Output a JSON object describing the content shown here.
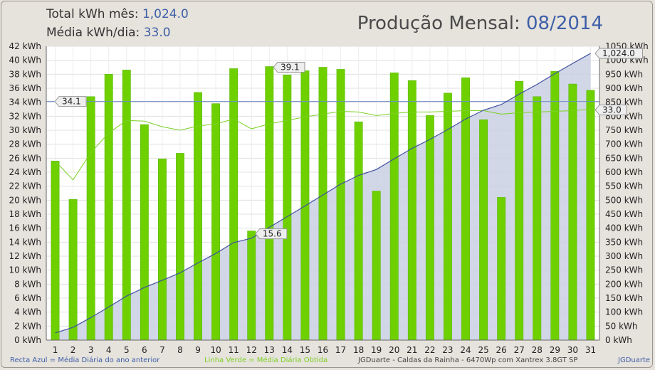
{
  "header": {
    "total_label": "Total kWh mês:",
    "total_value": "1,024.0",
    "avg_label": "Média kWh/dia:",
    "avg_value": "33.0",
    "title_label": "Produção Mensal:",
    "title_value": "08/2014"
  },
  "footer": {
    "blue_note": "Recta Azul = Média Diária do ano anterior",
    "green_note": "Linha Verde = Média Diária Obtida",
    "system_note": "JGDuarte  -  Caldas da Rainha  -  6470Wp com Xantrex 3.8GT SP",
    "credit": "JGDuarte"
  },
  "chart_data": {
    "type": "bar",
    "categories": [
      "1",
      "2",
      "3",
      "4",
      "5",
      "6",
      "7",
      "8",
      "9",
      "10",
      "11",
      "12",
      "13",
      "14",
      "15",
      "16",
      "17",
      "18",
      "19",
      "20",
      "21",
      "22",
      "23",
      "24",
      "25",
      "26",
      "27",
      "28",
      "29",
      "30",
      "31"
    ],
    "series": [
      {
        "values": [
          25.6,
          20.1,
          34.8,
          38.0,
          38.6,
          30.8,
          25.9,
          26.7,
          35.4,
          33.8,
          38.8,
          15.6,
          39.1,
          37.9,
          38.5,
          39.0,
          38.7,
          31.2,
          21.3,
          38.2,
          37.1,
          32.1,
          35.3,
          37.5,
          31.5,
          20.4,
          37.0,
          34.8,
          38.4,
          36.6,
          35.7
        ]
      },
      {
        "values": [
          25.6,
          22.9,
          26.8,
          29.6,
          31.4,
          31.3,
          30.5,
          30.0,
          30.6,
          30.9,
          31.6,
          30.2,
          30.9,
          31.4,
          31.9,
          32.3,
          32.7,
          32.6,
          32.1,
          32.4,
          32.6,
          32.6,
          32.7,
          32.8,
          32.8,
          32.3,
          32.5,
          32.6,
          32.7,
          32.8,
          33.0
        ]
      },
      {
        "values": [
          25.6,
          45.7,
          80.5,
          118.5,
          157.1,
          187.9,
          213.8,
          240.5,
          275.9,
          309.7,
          348.5,
          364.1,
          403.2,
          441.1,
          479.6,
          518.6,
          557.3,
          588.5,
          609.8,
          648.0,
          685.1,
          717.2,
          752.5,
          790.0,
          821.5,
          841.9,
          878.9,
          913.7,
          952.1,
          988.7,
          1024.4
        ]
      }
    ],
    "reference_line": 34.1,
    "y_left": {
      "min": 0,
      "max": 42,
      "step": 2,
      "unit": "kWh",
      "labels": [
        "0 kWh",
        "2 kWh",
        "4 kWh",
        "6 kWh",
        "8 kWh",
        "10 kWh",
        "12 kWh",
        "14 kWh",
        "16 kWh",
        "18 kWh",
        "20 kWh",
        "22 kWh",
        "24 kWh",
        "26 kWh",
        "28 kWh",
        "30 kWh",
        "32 kWh",
        "34 kWh",
        "36 kWh",
        "38 kWh",
        "40 kWh",
        "42 kWh"
      ]
    },
    "y_right": {
      "min": 0,
      "max": 1050,
      "step": 50,
      "unit": "kWh",
      "labels": [
        "0 kWh",
        "50 kWh",
        "100 kWh",
        "150 kWh",
        "200 kWh",
        "250 kWh",
        "300 kWh",
        "350 kWh",
        "400 kWh",
        "450 kWh",
        "500 kWh",
        "550 kWh",
        "600 kWh",
        "650 kWh",
        "700 kWh",
        "750 kWh",
        "800 kWh",
        "850 kWh",
        "900 kWh",
        "950 kWh",
        "1000 kWh",
        "1050 kWh"
      ]
    },
    "annotations": {
      "ref": "34.1",
      "max": "39.1",
      "min": "15.6",
      "avg": "33.0",
      "total": "1,024.0"
    },
    "grid": true,
    "colors": {
      "bars": "#6fd000",
      "bars_edge": "#5ab800",
      "avg_line": "#7bd024",
      "cumulative_line": "#4050a0",
      "cumulative_fill": "#c9d0e2",
      "reference_line": "#6f8fc8",
      "plot_bg": "#ffffff"
    }
  }
}
